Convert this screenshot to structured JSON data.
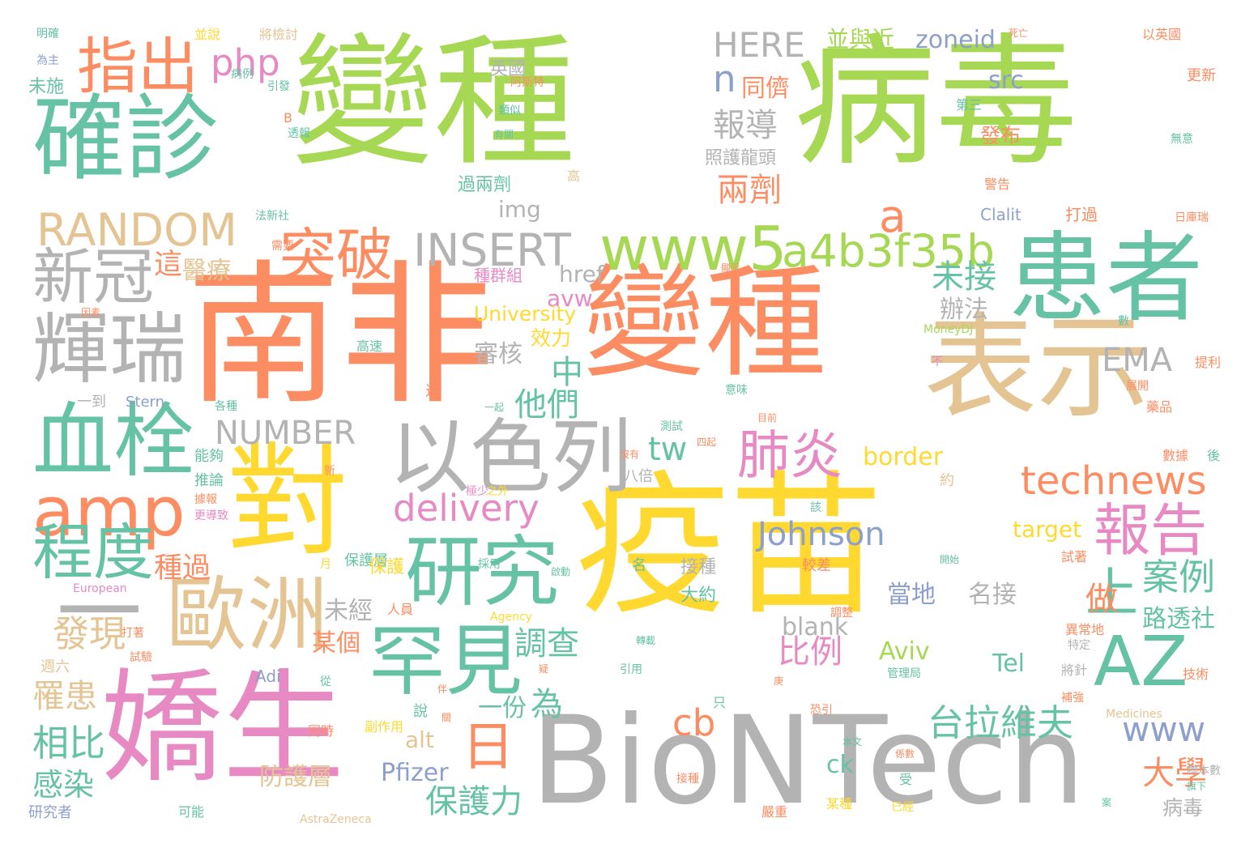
{
  "palette": {
    "green": "#a6d854",
    "teal": "#66c2a5",
    "orange": "#fc8d62",
    "yellow": "#ffd92f",
    "tan": "#e5c494",
    "gray": "#b3b3b3",
    "pink": "#e78ac3",
    "blue": "#8da0cb"
  },
  "words": [
    {
      "text": "病毒",
      "color": "green"
    },
    {
      "text": "變種",
      "color": "green"
    },
    {
      "text": "確診",
      "color": "teal"
    },
    {
      "text": "指出",
      "color": "orange"
    },
    {
      "text": "南非",
      "color": "orange"
    },
    {
      "text": "變種",
      "color": "orange"
    },
    {
      "text": "疫苗",
      "color": "yellow"
    },
    {
      "text": "BioNTech",
      "color": "gray"
    },
    {
      "text": "嬌生",
      "color": "pink"
    },
    {
      "text": "對",
      "color": "yellow"
    },
    {
      "text": "表示",
      "color": "tan"
    },
    {
      "text": "患者",
      "color": "teal"
    },
    {
      "text": "以色列",
      "color": "gray"
    },
    {
      "text": "輝瑞",
      "color": "gray"
    },
    {
      "text": "新冠",
      "color": "gray"
    },
    {
      "text": "血栓",
      "color": "teal"
    },
    {
      "text": "一",
      "color": "gray"
    },
    {
      "text": "歐洲",
      "color": "tan"
    },
    {
      "text": "研究",
      "color": "teal"
    },
    {
      "text": "罕見",
      "color": "teal"
    },
    {
      "text": "AZ",
      "color": "teal"
    },
    {
      "text": "amp",
      "color": "orange"
    },
    {
      "text": "程度",
      "color": "teal"
    },
    {
      "text": "www5",
      "color": "green"
    },
    {
      "text": "a4b3f35b",
      "color": "green"
    },
    {
      "text": "INSERT",
      "color": "gray"
    },
    {
      "text": "RANDOM",
      "color": "tan"
    },
    {
      "text": "突破",
      "color": "orange"
    },
    {
      "text": "報告",
      "color": "pink"
    },
    {
      "text": "肺炎",
      "color": "pink"
    },
    {
      "text": "technews",
      "color": "orange"
    },
    {
      "text": "日",
      "color": "orange"
    },
    {
      "text": "上",
      "color": "teal"
    },
    {
      "text": "php",
      "color": "pink"
    },
    {
      "text": "HERE",
      "color": "gray"
    },
    {
      "text": "zoneid",
      "color": "blue"
    },
    {
      "text": "並與近",
      "color": "green"
    },
    {
      "text": "Johnson",
      "color": "blue"
    },
    {
      "text": "delivery",
      "color": "pink"
    },
    {
      "text": "NUMBER",
      "color": "gray"
    },
    {
      "text": "台拉維夫",
      "color": "teal"
    },
    {
      "text": "www",
      "color": "blue"
    },
    {
      "text": "cb",
      "color": "orange"
    },
    {
      "text": "tw",
      "color": "teal"
    },
    {
      "text": "EMA",
      "color": "gray"
    },
    {
      "text": "a",
      "color": "orange"
    },
    {
      "text": "n",
      "color": "blue"
    },
    {
      "text": "報導",
      "color": "gray"
    },
    {
      "text": "兩劑",
      "color": "orange"
    },
    {
      "text": "同儕",
      "color": "orange"
    },
    {
      "text": "src",
      "color": "blue"
    },
    {
      "text": "未接",
      "color": "teal"
    },
    {
      "text": "辦法",
      "color": "gray"
    },
    {
      "text": "他們",
      "color": "teal"
    },
    {
      "text": "中",
      "color": "teal"
    },
    {
      "text": "調查",
      "color": "teal"
    },
    {
      "text": "審核",
      "color": "gray"
    },
    {
      "text": "做",
      "color": "orange"
    },
    {
      "text": "案例",
      "color": "teal"
    },
    {
      "text": "比例",
      "color": "pink"
    },
    {
      "text": "border",
      "color": "yellow"
    },
    {
      "text": "target",
      "color": "yellow"
    },
    {
      "text": "當地",
      "color": "blue"
    },
    {
      "text": "名接",
      "color": "gray"
    },
    {
      "text": "Aviv",
      "color": "green"
    },
    {
      "text": "Tel",
      "color": "teal"
    },
    {
      "text": "路透社",
      "color": "teal"
    },
    {
      "text": "大學",
      "color": "orange"
    },
    {
      "text": "病毒",
      "color": "gray"
    },
    {
      "text": "Pfizer",
      "color": "blue"
    },
    {
      "text": "保護力",
      "color": "teal"
    },
    {
      "text": "防護層",
      "color": "tan"
    },
    {
      "text": "alt",
      "color": "tan"
    },
    {
      "text": "ck",
      "color": "teal"
    },
    {
      "text": "一份",
      "color": "teal"
    },
    {
      "text": "為",
      "color": "teal"
    },
    {
      "text": "blank",
      "color": "gray"
    },
    {
      "text": "未經",
      "color": "gray"
    },
    {
      "text": "某個",
      "color": "orange"
    },
    {
      "text": "發現",
      "color": "tan"
    },
    {
      "text": "種過",
      "color": "orange"
    },
    {
      "text": "罹患",
      "color": "tan"
    },
    {
      "text": "相比",
      "color": "teal"
    },
    {
      "text": "感染",
      "color": "teal"
    },
    {
      "text": "這",
      "color": "orange"
    },
    {
      "text": "醫療",
      "color": "tan"
    },
    {
      "text": "img",
      "color": "gray"
    },
    {
      "text": "href",
      "color": "gray"
    },
    {
      "text": "avw",
      "color": "pink"
    },
    {
      "text": "University",
      "color": "yellow"
    },
    {
      "text": "效力",
      "color": "yellow"
    },
    {
      "text": "種群組",
      "color": "pink"
    },
    {
      "text": "接種",
      "color": "gray"
    },
    {
      "text": "大約",
      "color": "teal"
    },
    {
      "text": "照護龍頭",
      "color": "gray"
    },
    {
      "text": "過兩劑",
      "color": "teal"
    },
    {
      "text": "英國",
      "color": "gray"
    },
    {
      "text": "發布",
      "color": "orange"
    },
    {
      "text": "Clalit",
      "color": "blue"
    },
    {
      "text": "打過",
      "color": "orange"
    },
    {
      "text": "更新",
      "color": "orange"
    },
    {
      "text": "以英國",
      "color": "orange"
    },
    {
      "text": "明確",
      "color": "teal"
    },
    {
      "text": "為主",
      "color": "blue"
    },
    {
      "text": "未施",
      "color": "teal"
    },
    {
      "text": "將檢討",
      "color": "tan"
    },
    {
      "text": "並說",
      "color": "yellow"
    },
    {
      "text": "研究者",
      "color": "blue"
    },
    {
      "text": "一到",
      "color": "gray"
    },
    {
      "text": "Stern",
      "color": "blue"
    },
    {
      "text": "能夠",
      "color": "teal"
    },
    {
      "text": "推論",
      "color": "teal"
    },
    {
      "text": "週六",
      "color": "tan"
    },
    {
      "text": "可能",
      "color": "teal"
    },
    {
      "text": "Adi",
      "color": "blue"
    },
    {
      "text": "MoneyDJ",
      "color": "green"
    },
    {
      "text": "AstraZeneca",
      "color": "tan"
    },
    {
      "text": "European",
      "color": "pink"
    },
    {
      "text": "Agency",
      "color": "yellow"
    },
    {
      "text": "Medicines",
      "color": "tan"
    },
    {
      "text": "警告",
      "color": "orange"
    },
    {
      "text": "第三",
      "color": "teal"
    },
    {
      "text": "阿斯特",
      "color": "orange"
    },
    {
      "text": "引發",
      "color": "teal"
    },
    {
      "text": "高速",
      "color": "teal"
    },
    {
      "text": "高",
      "color": "tan"
    },
    {
      "text": "近",
      "color": "orange"
    },
    {
      "text": "保護層",
      "color": "teal"
    },
    {
      "text": "提利",
      "color": "orange"
    },
    {
      "text": "藥品",
      "color": "orange"
    },
    {
      "text": "後",
      "color": "teal"
    },
    {
      "text": "數據",
      "color": "orange"
    },
    {
      "text": "約",
      "color": "tan"
    },
    {
      "text": "八倍",
      "color": "gray"
    },
    {
      "text": "保護",
      "color": "yellow"
    },
    {
      "text": "人員",
      "color": "orange"
    },
    {
      "text": "異常地",
      "color": "orange"
    },
    {
      "text": "特定",
      "color": "gray"
    },
    {
      "text": "試著",
      "color": "orange"
    },
    {
      "text": "技術",
      "color": "orange"
    },
    {
      "text": "標本數",
      "color": "gray"
    },
    {
      "text": "受",
      "color": "teal"
    },
    {
      "text": "嚴重",
      "color": "orange"
    },
    {
      "text": "某種",
      "color": "yellow"
    },
    {
      "text": "較差",
      "color": "orange"
    },
    {
      "text": "只",
      "color": "teal"
    },
    {
      "text": "同時",
      "color": "orange"
    },
    {
      "text": "副作用",
      "color": "yellow"
    },
    {
      "text": "試驗",
      "color": "orange"
    },
    {
      "text": "打著",
      "color": "orange"
    },
    {
      "text": "從",
      "color": "teal"
    },
    {
      "text": "說",
      "color": "teal"
    },
    {
      "text": "管理局",
      "color": "teal"
    },
    {
      "text": "轉載",
      "color": "teal"
    },
    {
      "text": "引用",
      "color": "teal"
    },
    {
      "text": "該",
      "color": "teal"
    },
    {
      "text": "恐引",
      "color": "orange"
    },
    {
      "text": "本文",
      "color": "teal"
    },
    {
      "text": "展開",
      "color": "orange"
    },
    {
      "text": "意味",
      "color": "teal"
    },
    {
      "text": "新",
      "color": "orange"
    },
    {
      "text": "B",
      "color": "orange"
    },
    {
      "text": "透報",
      "color": "teal"
    },
    {
      "text": "類似",
      "color": "teal"
    },
    {
      "text": "有關",
      "color": "teal"
    },
    {
      "text": "一起",
      "color": "teal"
    },
    {
      "text": "採用",
      "color": "teal"
    },
    {
      "text": "開始",
      "color": "teal"
    },
    {
      "text": "無意",
      "color": "teal"
    },
    {
      "text": "日庫瑞",
      "color": "orange"
    },
    {
      "text": "各種",
      "color": "teal"
    },
    {
      "text": "沒有",
      "color": "orange"
    },
    {
      "text": "測試",
      "color": "teal"
    },
    {
      "text": "需要",
      "color": "orange"
    },
    {
      "text": "法新社",
      "color": "teal"
    },
    {
      "text": "名",
      "color": "teal"
    },
    {
      "text": "更導致",
      "color": "pink"
    },
    {
      "text": "調整",
      "color": "orange"
    },
    {
      "text": "啟動",
      "color": "teal"
    },
    {
      "text": "月",
      "color": "yellow"
    },
    {
      "text": "不",
      "color": "pink"
    },
    {
      "text": "數",
      "color": "teal"
    },
    {
      "text": "極少",
      "color": "pink"
    },
    {
      "text": "之外",
      "color": "yellow"
    },
    {
      "text": "病例",
      "color": "teal"
    },
    {
      "text": "死亡",
      "color": "orange"
    },
    {
      "text": "因素",
      "color": "orange"
    },
    {
      "text": "顯示",
      "color": "orange"
    },
    {
      "text": "目前",
      "color": "orange"
    },
    {
      "text": "四起",
      "color": "orange"
    },
    {
      "text": "據報",
      "color": "orange"
    },
    {
      "text": "疑",
      "color": "orange"
    },
    {
      "text": "庚",
      "color": "orange"
    },
    {
      "text": "將針",
      "color": "gray"
    },
    {
      "text": "補強",
      "color": "orange"
    },
    {
      "text": "旗下",
      "color": "teal"
    },
    {
      "text": "接種",
      "color": "orange"
    },
    {
      "text": "已經",
      "color": "yellow"
    },
    {
      "text": "係數",
      "color": "orange"
    },
    {
      "text": "伴",
      "color": "orange"
    },
    {
      "text": "關",
      "color": "orange"
    },
    {
      "text": "案",
      "color": "teal"
    }
  ]
}
